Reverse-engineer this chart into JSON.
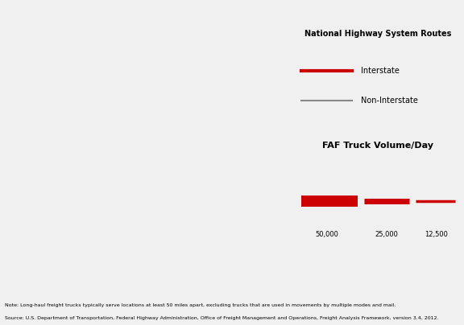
{
  "title": "",
  "background_color": "#a8c8d8",
  "land_color": "#d4d8c8",
  "fig_width": 5.76,
  "fig_height": 4.04,
  "legend_title": "National Highway System Routes",
  "legend_items": [
    "Interstate",
    "Non-Interstate"
  ],
  "legend_colors": [
    "#cc0000",
    "#808080"
  ],
  "volume_title": "FAF Truck Volume/Day",
  "volume_labels": [
    "50,000",
    "25,000",
    "12,500"
  ],
  "note_line1": "Note: Long-haul freight trucks typically serve locations at least 50 miles apart, excluding trucks that are used in movements by multiple modes and mail.",
  "note_line2": "Source: U.S. Department of Transportation, Federal Highway Administration, Office of Freight Management and Operations, Freight Analysis Framework, version 3.4, 2012.",
  "interstate_color": "#cc0000",
  "noninterstate_color": "#888888",
  "ocean_color": "#a8c8d8",
  "us_fill_color": "#dcddd5",
  "canada_fill_color": "#6b8f6b",
  "mexico_fill_color": "#6b8f6b"
}
